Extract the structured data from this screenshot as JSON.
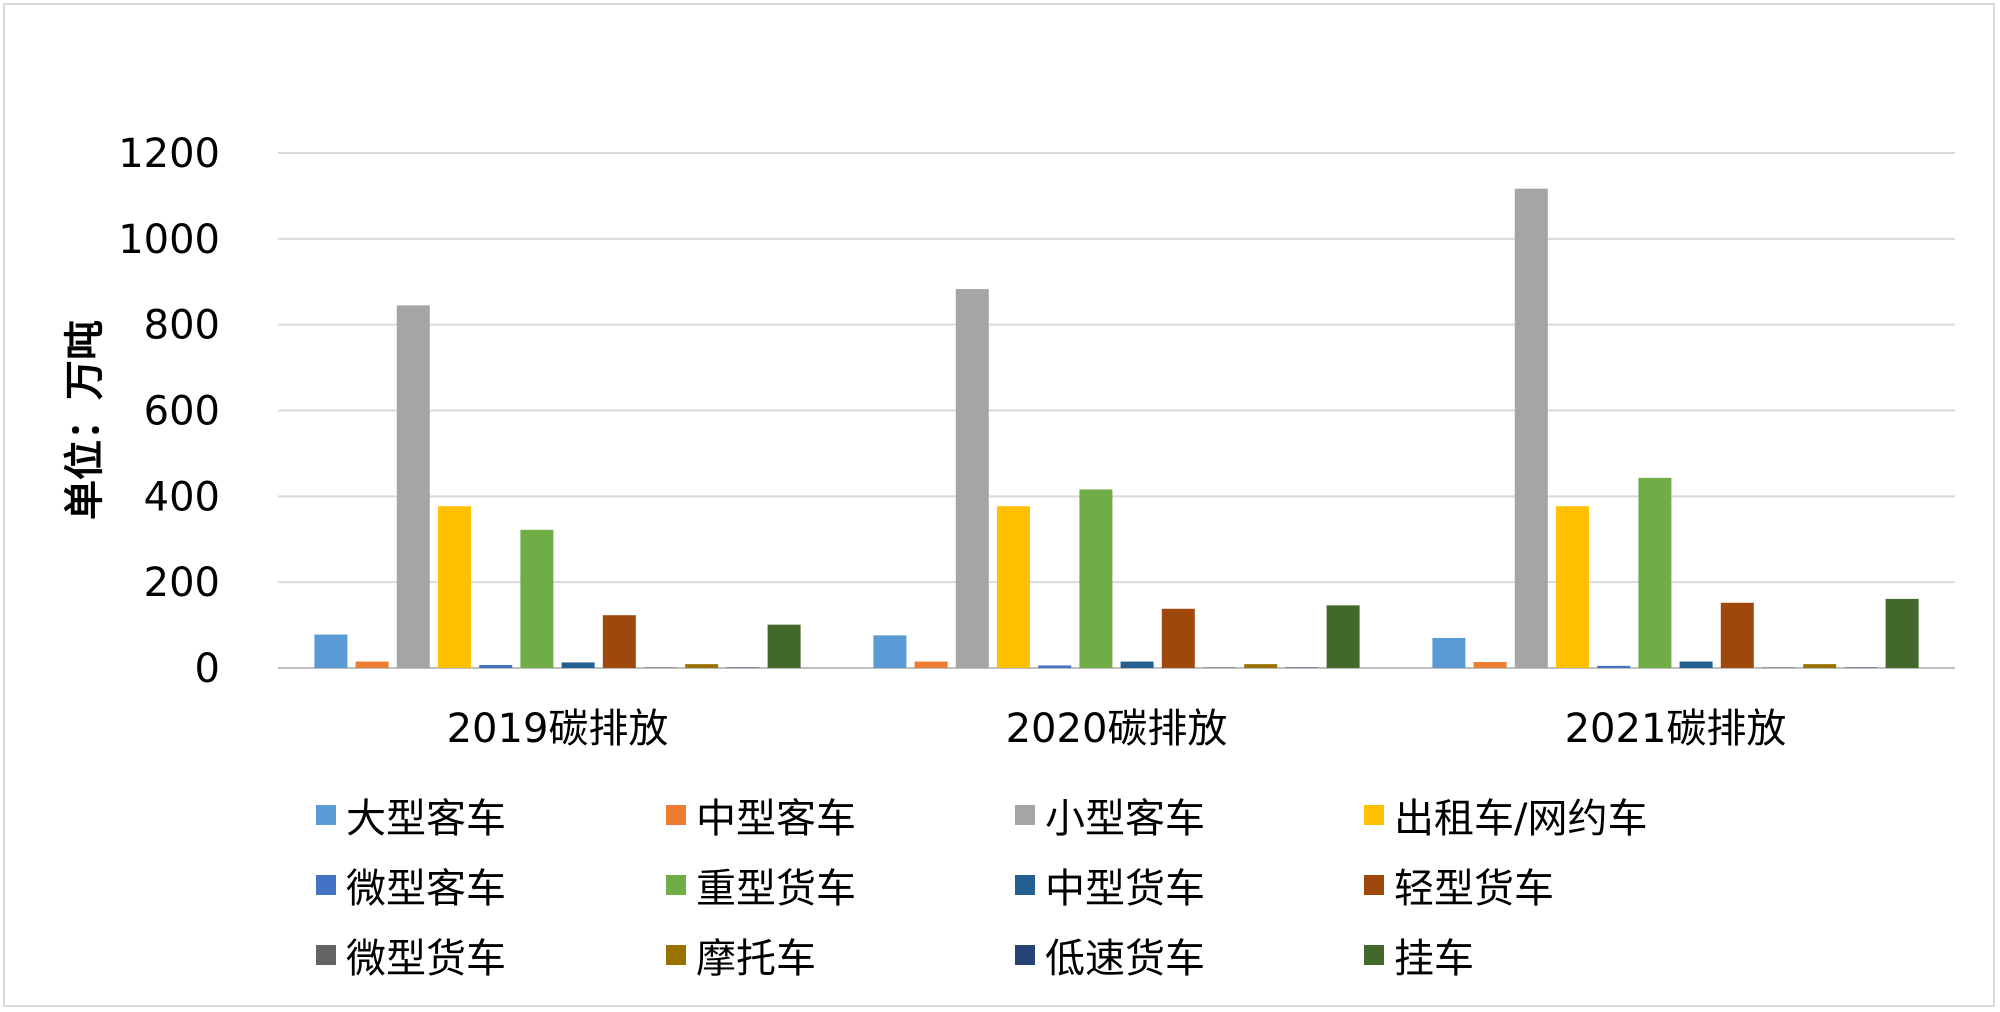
{
  "chart_data": {
    "type": "bar",
    "title": "",
    "xlabel": "",
    "ylabel": "单位：万吨",
    "ylim": [
      0,
      1200
    ],
    "yticks": [
      0,
      200,
      400,
      600,
      800,
      1000,
      1200
    ],
    "grid": true,
    "legend_position": "bottom",
    "categories": [
      "2019碳排放",
      "2020碳排放",
      "2021碳排放"
    ],
    "series": [
      {
        "name": "大型客车",
        "color": "#5b9bd5",
        "values": [
          78,
          76,
          70
        ]
      },
      {
        "name": "中型客车",
        "color": "#ed7d31",
        "values": [
          15,
          15,
          14
        ]
      },
      {
        "name": "小型客车",
        "color": "#a5a5a5",
        "values": [
          845,
          883,
          1117
        ]
      },
      {
        "name": "出租车/网约车",
        "color": "#ffc000",
        "values": [
          377,
          377,
          377
        ]
      },
      {
        "name": "微型客车",
        "color": "#4472c4",
        "values": [
          7,
          6,
          5
        ]
      },
      {
        "name": "重型货车",
        "color": "#70ad47",
        "values": [
          322,
          416,
          443
        ]
      },
      {
        "name": "中型货车",
        "color": "#255e91",
        "values": [
          13,
          15,
          15
        ]
      },
      {
        "name": "轻型货车",
        "color": "#9e480e",
        "values": [
          123,
          138,
          152
        ]
      },
      {
        "name": "微型货车",
        "color": "#636363",
        "values": [
          1,
          1,
          1
        ]
      },
      {
        "name": "摩托车",
        "color": "#997300",
        "values": [
          9,
          9,
          9
        ]
      },
      {
        "name": "低速货车",
        "color": "#264478",
        "values": [
          1,
          1,
          1
        ]
      },
      {
        "name": "挂车",
        "color": "#43682b",
        "values": [
          101,
          146,
          161
        ]
      }
    ]
  }
}
